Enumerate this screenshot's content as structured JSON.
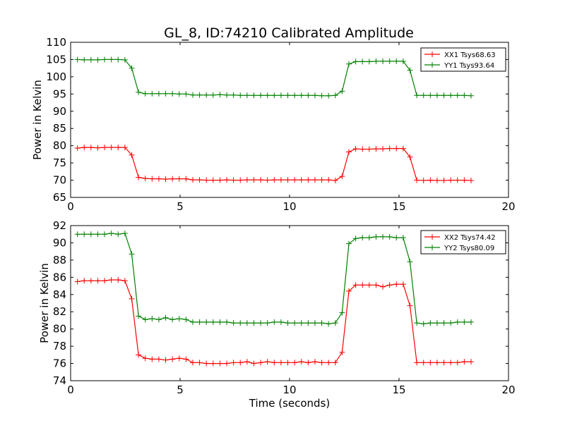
{
  "title": "GL_8, ID:74210 Calibrated Amplitude",
  "chart_data": [
    {
      "type": "line",
      "title": "GL_8, ID:74210 Calibrated Amplitude",
      "xlabel": "",
      "ylabel": "Power in Kelvin",
      "xlim": [
        0,
        20
      ],
      "ylim": [
        65,
        110
      ],
      "xticks": [
        "0",
        "5",
        "10",
        "15",
        "20"
      ],
      "yticks": [
        "65",
        "70",
        "75",
        "80",
        "85",
        "90",
        "95",
        "100",
        "105",
        "110"
      ],
      "grid": false,
      "legend_position": "top-right",
      "x": [
        0.31,
        0.62,
        0.93,
        1.24,
        1.55,
        1.86,
        2.17,
        2.48,
        2.79,
        3.1,
        3.41,
        3.72,
        4.03,
        4.34,
        4.65,
        4.96,
        5.27,
        5.58,
        5.89,
        6.2,
        6.51,
        6.82,
        7.13,
        7.44,
        7.75,
        8.06,
        8.37,
        8.68,
        8.99,
        9.3,
        9.61,
        9.92,
        10.23,
        10.54,
        10.85,
        11.16,
        11.47,
        11.78,
        12.09,
        12.4,
        12.71,
        13.02,
        13.33,
        13.64,
        13.95,
        14.26,
        14.57,
        14.88,
        15.19,
        15.5,
        15.81,
        16.12,
        16.43,
        16.74,
        17.05,
        17.36,
        17.67,
        17.98,
        18.29
      ],
      "series": [
        {
          "name": "XX1 Tsys68.63",
          "color": "#ff0000",
          "values": [
            79.3,
            79.5,
            79.5,
            79.4,
            79.5,
            79.5,
            79.5,
            79.5,
            77.3,
            70.8,
            70.5,
            70.4,
            70.4,
            70.3,
            70.4,
            70.4,
            70.4,
            70.1,
            70.1,
            70.0,
            70.0,
            70.0,
            70.1,
            70.0,
            70.0,
            70.1,
            70.1,
            70.1,
            70.0,
            70.1,
            70.1,
            70.1,
            70.1,
            70.1,
            70.1,
            70.1,
            70.1,
            70.1,
            69.9,
            71.1,
            78.2,
            79.1,
            79.0,
            79.0,
            79.1,
            79.1,
            79.2,
            79.2,
            79.2,
            76.7,
            70.0,
            69.9,
            70.0,
            69.9,
            69.9,
            70.0,
            70.0,
            70.0,
            69.9
          ]
        },
        {
          "name": "YY1 Tsys93.64",
          "color": "#008000",
          "values": [
            105.0,
            104.9,
            104.9,
            104.9,
            105.0,
            105.0,
            105.0,
            104.9,
            102.5,
            95.5,
            95.1,
            95.1,
            95.1,
            95.1,
            95.1,
            95.0,
            95.0,
            94.7,
            94.7,
            94.7,
            94.7,
            94.8,
            94.7,
            94.7,
            94.6,
            94.6,
            94.6,
            94.6,
            94.6,
            94.6,
            94.6,
            94.6,
            94.6,
            94.6,
            94.6,
            94.6,
            94.5,
            94.5,
            94.6,
            95.8,
            103.7,
            104.4,
            104.4,
            104.4,
            104.5,
            104.5,
            104.5,
            104.5,
            104.5,
            101.9,
            94.6,
            94.6,
            94.6,
            94.6,
            94.6,
            94.6,
            94.6,
            94.6,
            94.5
          ]
        }
      ]
    },
    {
      "type": "line",
      "title": "",
      "xlabel": "Time (seconds)",
      "ylabel": "Power in Kelvin",
      "xlim": [
        0,
        20
      ],
      "ylim": [
        74,
        92
      ],
      "xticks": [
        "0",
        "5",
        "10",
        "15",
        "20"
      ],
      "yticks": [
        "74",
        "76",
        "78",
        "80",
        "82",
        "84",
        "86",
        "88",
        "90",
        "92"
      ],
      "grid": false,
      "legend_position": "top-right",
      "x": [
        0.31,
        0.62,
        0.93,
        1.24,
        1.55,
        1.86,
        2.17,
        2.48,
        2.79,
        3.1,
        3.41,
        3.72,
        4.03,
        4.34,
        4.65,
        4.96,
        5.27,
        5.58,
        5.89,
        6.2,
        6.51,
        6.82,
        7.13,
        7.44,
        7.75,
        8.06,
        8.37,
        8.68,
        8.99,
        9.3,
        9.61,
        9.92,
        10.23,
        10.54,
        10.85,
        11.16,
        11.47,
        11.78,
        12.09,
        12.4,
        12.71,
        13.02,
        13.33,
        13.64,
        13.95,
        14.26,
        14.57,
        14.88,
        15.19,
        15.5,
        15.81,
        16.12,
        16.43,
        16.74,
        17.05,
        17.36,
        17.67,
        17.98,
        18.29
      ],
      "series": [
        {
          "name": "XX2 Tsys74.42",
          "color": "#ff0000",
          "values": [
            85.5,
            85.6,
            85.6,
            85.6,
            85.6,
            85.7,
            85.7,
            85.6,
            83.5,
            77.0,
            76.6,
            76.5,
            76.5,
            76.4,
            76.5,
            76.6,
            76.5,
            76.1,
            76.1,
            76.0,
            76.0,
            76.0,
            76.0,
            76.1,
            76.1,
            76.2,
            76.0,
            76.1,
            76.2,
            76.1,
            76.1,
            76.1,
            76.1,
            76.2,
            76.1,
            76.2,
            76.1,
            76.1,
            76.1,
            77.3,
            84.4,
            85.1,
            85.1,
            85.1,
            85.1,
            84.9,
            85.1,
            85.2,
            85.2,
            82.7,
            76.1,
            76.1,
            76.1,
            76.1,
            76.1,
            76.1,
            76.1,
            76.2,
            76.2
          ]
        },
        {
          "name": "YY2 Tsys80.09",
          "color": "#008000",
          "values": [
            91.0,
            91.0,
            91.0,
            91.0,
            91.0,
            91.1,
            91.0,
            91.1,
            88.7,
            81.5,
            81.1,
            81.2,
            81.1,
            81.3,
            81.1,
            81.2,
            81.1,
            80.8,
            80.8,
            80.8,
            80.8,
            80.8,
            80.8,
            80.7,
            80.7,
            80.7,
            80.7,
            80.7,
            80.7,
            80.8,
            80.8,
            80.7,
            80.7,
            80.7,
            80.7,
            80.7,
            80.7,
            80.6,
            80.7,
            81.9,
            89.9,
            90.5,
            90.6,
            90.6,
            90.7,
            90.7,
            90.7,
            90.6,
            90.6,
            87.8,
            80.7,
            80.6,
            80.7,
            80.7,
            80.7,
            80.7,
            80.8,
            80.8,
            80.8
          ]
        }
      ]
    }
  ]
}
